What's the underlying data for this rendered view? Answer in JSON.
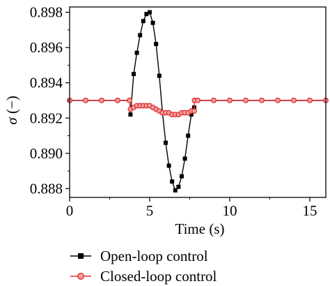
{
  "chart_data": {
    "type": "line",
    "xlabel": "Time (s)",
    "ylabel_symbol": "σ",
    "ylabel_unit": " (−)",
    "xlim": [
      0,
      16
    ],
    "ylim": [
      0.8875,
      0.8983
    ],
    "xticks": [
      0,
      5,
      10,
      15
    ],
    "xtick_labels": [
      "0",
      "5",
      "10",
      "15"
    ],
    "yticks": [
      0.888,
      0.89,
      0.892,
      0.894,
      0.896,
      0.898
    ],
    "ytick_labels": [
      "0.888",
      "0.890",
      "0.892",
      "0.894",
      "0.896",
      "0.898"
    ],
    "grid": false,
    "legend_position": "bottom",
    "series": [
      {
        "name": "Open-loop control",
        "color": "#000000",
        "marker": "square",
        "x": [
          0,
          1,
          2,
          3,
          3.75,
          3.8,
          4.0,
          4.2,
          4.4,
          4.6,
          4.8,
          5.0,
          5.2,
          5.4,
          5.6,
          5.8,
          6.0,
          6.2,
          6.4,
          6.6,
          6.8,
          7.0,
          7.2,
          7.4,
          7.6,
          7.78,
          7.8,
          8,
          9,
          10,
          11,
          12,
          13,
          14,
          15,
          16
        ],
        "y": [
          0.893,
          0.893,
          0.893,
          0.893,
          0.893,
          0.8922,
          0.8945,
          0.8957,
          0.8967,
          0.8975,
          0.8979,
          0.898,
          0.8974,
          0.8962,
          0.8944,
          0.8923,
          0.8906,
          0.8893,
          0.8884,
          0.8879,
          0.8881,
          0.8887,
          0.8897,
          0.891,
          0.8922,
          0.8926,
          0.893,
          0.893,
          0.893,
          0.893,
          0.893,
          0.893,
          0.893,
          0.893,
          0.893,
          0.893
        ]
      },
      {
        "name": "Closed-loop control",
        "color": "#e03030",
        "marker": "circle",
        "x": [
          0,
          1,
          2,
          3,
          3.75,
          3.8,
          4.0,
          4.2,
          4.4,
          4.6,
          4.8,
          5.0,
          5.2,
          5.4,
          5.6,
          5.8,
          6.0,
          6.2,
          6.4,
          6.6,
          6.8,
          7.0,
          7.2,
          7.4,
          7.6,
          7.78,
          7.8,
          8,
          9,
          10,
          11,
          12,
          13,
          14,
          15,
          16
        ],
        "y": [
          0.893,
          0.893,
          0.893,
          0.893,
          0.893,
          0.8925,
          0.8926,
          0.8927,
          0.8927,
          0.8927,
          0.8927,
          0.8927,
          0.8926,
          0.8925,
          0.8924,
          0.8923,
          0.8923,
          0.8923,
          0.8922,
          0.8922,
          0.8922,
          0.8923,
          0.8923,
          0.8923,
          0.8924,
          0.8924,
          0.893,
          0.893,
          0.893,
          0.893,
          0.893,
          0.893,
          0.893,
          0.893,
          0.893,
          0.893
        ]
      }
    ]
  }
}
